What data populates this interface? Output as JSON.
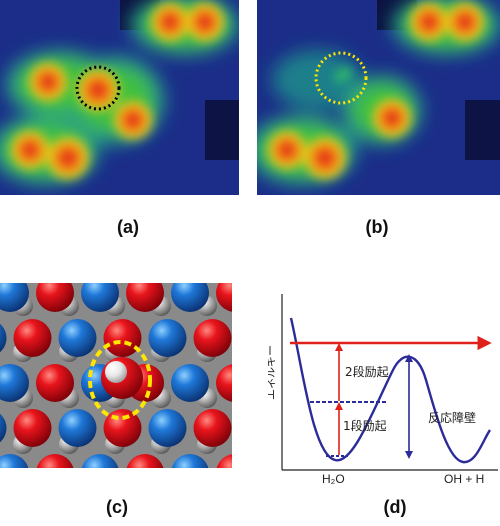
{
  "panels": {
    "a": {
      "label": "(a)"
    },
    "b": {
      "label": "(b)"
    },
    "c": {
      "label": "(c)"
    },
    "d": {
      "label": "(d)"
    }
  },
  "diagram_d": {
    "y_axis_label": "エネルギー",
    "x_label_left": "H₂O",
    "x_label_right": "OH + H",
    "annotation_upper": "2段励起",
    "annotation_lower": "1段励起",
    "annotation_barrier": "反応障壁"
  },
  "colors": {
    "stm_background": "#1a2a8a",
    "stm_peak": "#e02020",
    "highlight_black": "#000000",
    "highlight_yellow": "#ffe600",
    "oxygen_atom": "#d0121a",
    "metal_atom": "#1c6fd0",
    "hydrogen_atom": "#f2f2f2",
    "curve": "#2b2b9a",
    "excitation_arrow": "#e0201a"
  }
}
